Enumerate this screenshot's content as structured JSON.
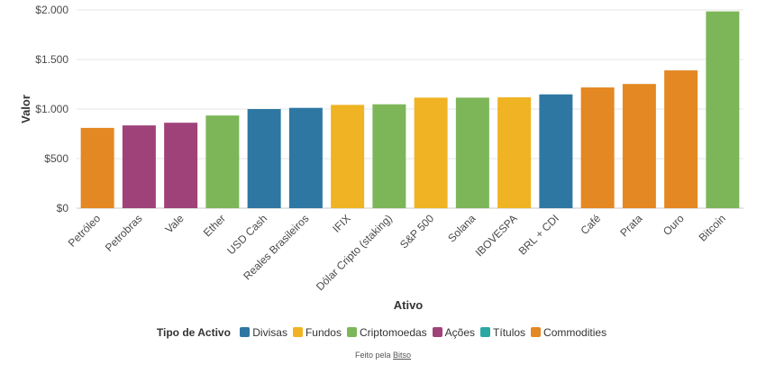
{
  "chart_data": {
    "type": "bar",
    "categories": [
      "Petróleo",
      "Petrobras",
      "Vale",
      "Ether",
      "USD Cash",
      "Reales Brasileiros",
      "IFIX",
      "Dólar Cripto (staking)",
      "S&P 500",
      "Solana",
      "IBOVESPA",
      "BRL + CDI",
      "Café",
      "Prata",
      "Ouro",
      "Bitcoin"
    ],
    "values": [
      810,
      835,
      862,
      935,
      1000,
      1012,
      1042,
      1048,
      1115,
      1115,
      1118,
      1148,
      1218,
      1253,
      1390,
      1985
    ],
    "groups": [
      "Commodities",
      "Ações",
      "Ações",
      "Criptomoedas",
      "Divisas",
      "Divisas",
      "Fundos",
      "Criptomoedas",
      "Fundos",
      "Criptomoedas",
      "Fundos",
      "Divisas",
      "Commodities",
      "Commodities",
      "Commodities",
      "Criptomoedas"
    ],
    "xlabel": "Ativo",
    "ylabel": "Valor",
    "ylim": [
      0,
      2000
    ],
    "yticks": [
      0,
      500,
      1000,
      1500,
      2000
    ],
    "ytick_labels": [
      "$0",
      "$500",
      "$1.000",
      "$1.500",
      "$2.000"
    ],
    "grid": true,
    "legend": {
      "placement": "bottom",
      "title": "Tipo de Activo",
      "entries": [
        {
          "name": "Divisas",
          "color": "#2e77a3"
        },
        {
          "name": "Fundos",
          "color": "#f0b323"
        },
        {
          "name": "Criptomoedas",
          "color": "#7db659"
        },
        {
          "name": "Ações",
          "color": "#a0427a"
        },
        {
          "name": "Títulos",
          "color": "#2ba8a3"
        },
        {
          "name": "Commodities",
          "color": "#e48823"
        }
      ]
    }
  },
  "footer": {
    "prefix": "Feito pela",
    "link": "Bitso"
  }
}
